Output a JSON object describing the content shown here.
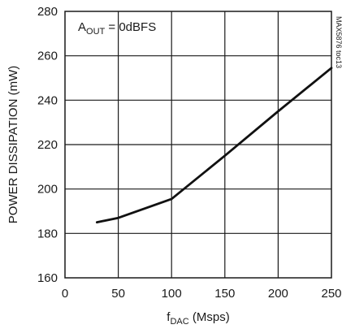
{
  "chart_data": {
    "type": "line",
    "title": "",
    "xlabel_main": "f",
    "xlabel_sub": "DAC",
    "xlabel_unit": " (Msps)",
    "ylabel": "POWER DISSIPATION (mW)",
    "xlim": [
      0,
      250
    ],
    "ylim": [
      160,
      280
    ],
    "xticks": [
      0,
      50,
      100,
      150,
      200,
      250
    ],
    "yticks": [
      160,
      180,
      200,
      220,
      240,
      260,
      280
    ],
    "grid": true,
    "annotation_main": "A",
    "annotation_sub": "OUT",
    "annotation_rest": " = 0dBFS",
    "watermark": "MAX5876 toc13",
    "series": [
      {
        "x": [
          30,
          50,
          100,
          150,
          200,
          250
        ],
        "y": [
          185,
          187,
          195.5,
          215,
          235,
          254.5
        ]
      }
    ]
  }
}
